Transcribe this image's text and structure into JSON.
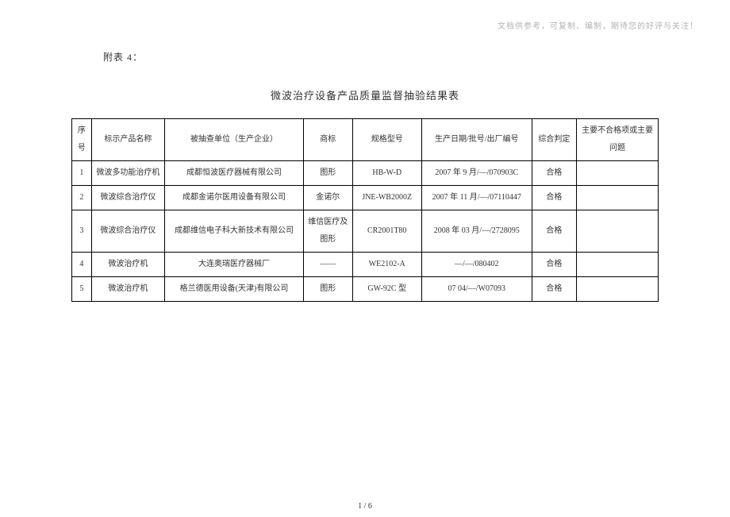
{
  "header_note": "文档供参考，可复制、编制，期待您的好评与关注！",
  "attach_label": "附表 4：",
  "title": "微波治疗设备产品质量监督抽验结果表",
  "page_number": "1 / 6",
  "columns": {
    "idx": "序号",
    "name": "标示产品名称",
    "unit": "被抽查单位（生产企业）",
    "brand": "商标",
    "model": "规格型号",
    "date": "生产日期/批号/出厂编号",
    "judge": "综合判定",
    "issue": "主要不合格项或主要问题"
  },
  "rows": [
    {
      "idx": "1",
      "name": "微波多功能治疗机",
      "unit": "成都恒波医疗器械有限公司",
      "brand": "图形",
      "model": "HB-W-D",
      "date": "2007 年 9 月/—/070903C",
      "judge": "合格",
      "issue": ""
    },
    {
      "idx": "2",
      "name": "微波综合治疗仪",
      "unit": "成都金诺尔医用设备有限公司",
      "brand": "金诺尔",
      "model": "JNE-WB2000Z",
      "date": "2007 年 11 月/—/07110447",
      "judge": "合格",
      "issue": ""
    },
    {
      "idx": "3",
      "name": "微波综合治疗仪",
      "unit": "成都维信电子科大新技术有限公司",
      "brand": "维信医疗及图形",
      "model": "CR2001T80",
      "date": "2008 年 03 月/—/2728095",
      "judge": "合格",
      "issue": ""
    },
    {
      "idx": "4",
      "name": "微波治疗机",
      "unit": "大连奥瑞医疗器械厂",
      "brand": "——",
      "model": "WE2102-A",
      "date": "—/—/080402",
      "judge": "合格",
      "issue": ""
    },
    {
      "idx": "5",
      "name": "微波治疗机",
      "unit": "格兰德医用设备(天津)有限公司",
      "brand": "图形",
      "model": "GW-92C 型",
      "date": "07 04/—/W07093",
      "judge": "合格",
      "issue": ""
    }
  ]
}
